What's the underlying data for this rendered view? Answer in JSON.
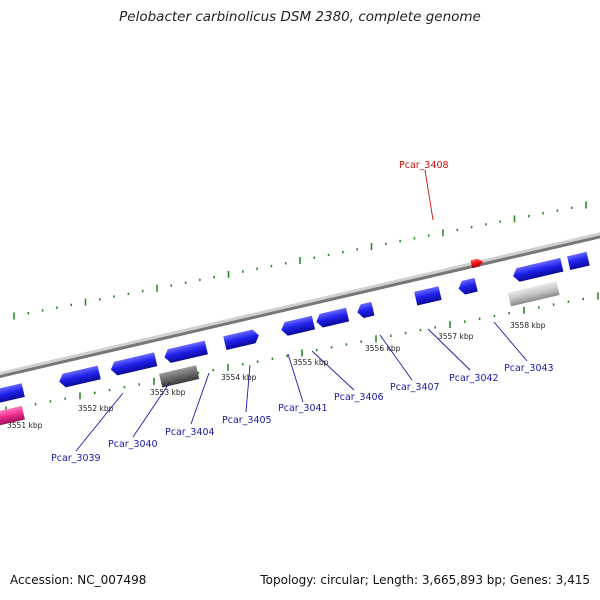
{
  "title": "Pelobacter carbinolicus DSM 2380, complete genome",
  "footer": {
    "accession": "Accession: NC_007498",
    "summary": "Topology: circular; Length: 3,665,893 bp; Genes: 3,415"
  },
  "colors": {
    "backbone": "#8a8a8a",
    "gene_plus": "#2222ee",
    "gene_selected": "#ee1111",
    "gene_pseudo_light": "#c8c8c8",
    "gene_pseudo_dark": "#6e6e6e",
    "gene_rna": "#ee2a8a",
    "tick": "#2a8a2a",
    "label": "#1a1aa6",
    "label_selected": "#cc1111"
  },
  "scale_labels": [
    "3551 kbp",
    "3552 kbp",
    "3553 kbp",
    "3554 kbp",
    "3555 kbp",
    "3556 kbp",
    "3557 kbp",
    "3558 kbp"
  ],
  "gene_labels": [
    "Pcar_3408",
    "Pcar_3039",
    "Pcar_3040",
    "Pcar_3404",
    "Pcar_3405",
    "Pcar_3041",
    "Pcar_3406",
    "Pcar_3407",
    "Pcar_3042",
    "Pcar_3043"
  ]
}
